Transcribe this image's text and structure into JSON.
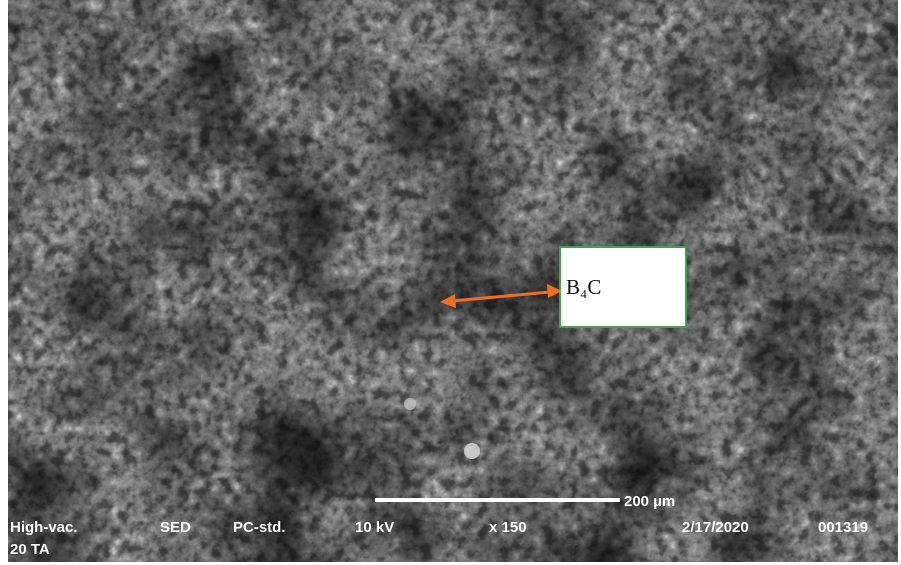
{
  "image": {
    "annotation": {
      "label": "B₄C"
    },
    "scale_bar": {
      "label": "200 µm"
    },
    "info_bar": {
      "items": [
        "High-vac.",
        "SED",
        "PC-std.",
        "10 kV",
        "x 150",
        "2/17/2020",
        "001319"
      ],
      "line2": "20 TA"
    }
  }
}
